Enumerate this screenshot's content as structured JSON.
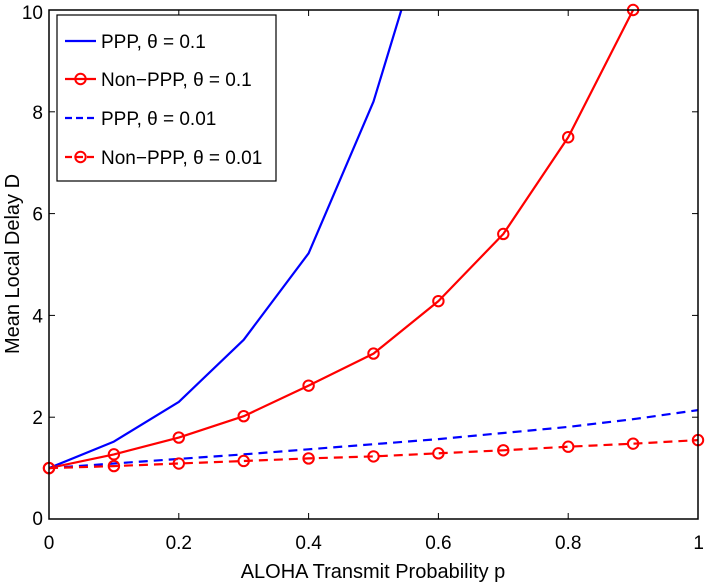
{
  "chart_data": {
    "type": "line",
    "title": "",
    "xlabel": "ALOHA Transmit Probability p",
    "ylabel": "Mean Local Delay D",
    "xlim": [
      0,
      1
    ],
    "ylim": [
      0,
      10
    ],
    "xticks": [
      0,
      0.2,
      0.4,
      0.6,
      0.8,
      1
    ],
    "yticks": [
      0,
      2,
      4,
      6,
      8,
      10
    ],
    "xtick_labels": [
      "0",
      "0.2",
      "0.4",
      "0.6",
      "0.8",
      "1"
    ],
    "ytick_labels": [
      "0",
      "2",
      "4",
      "6",
      "8",
      "10"
    ],
    "grid": false,
    "legend_position": "top-left",
    "series": [
      {
        "name": "PPP, θ = 0.1",
        "color": "#0000ff",
        "dash": "solid",
        "marker": "none",
        "x": [
          0,
          0.1,
          0.2,
          0.3,
          0.4,
          0.5,
          0.55
        ],
        "y": [
          1.0,
          1.52,
          2.3,
          3.52,
          5.22,
          8.2,
          10.3
        ]
      },
      {
        "name": "Non−PPP, θ = 0.1",
        "color": "#ff0000",
        "dash": "solid",
        "marker": "circle",
        "x": [
          0,
          0.1,
          0.2,
          0.3,
          0.4,
          0.5,
          0.6,
          0.7,
          0.8,
          0.9
        ],
        "y": [
          1.0,
          1.27,
          1.6,
          2.02,
          2.62,
          3.25,
          4.28,
          5.6,
          7.5,
          10.0
        ]
      },
      {
        "name": "PPP, θ = 0.01",
        "color": "#0000ff",
        "dash": "dashed",
        "marker": "none",
        "x": [
          0,
          0.1,
          0.2,
          0.3,
          0.4,
          0.5,
          0.6,
          0.7,
          0.8,
          0.9,
          1.0
        ],
        "y": [
          1.0,
          1.09,
          1.18,
          1.27,
          1.37,
          1.47,
          1.57,
          1.69,
          1.81,
          1.96,
          2.14
        ]
      },
      {
        "name": "Non−PPP, θ = 0.01",
        "color": "#ff0000",
        "dash": "dashed",
        "marker": "circle",
        "x": [
          0,
          0.1,
          0.2,
          0.3,
          0.4,
          0.5,
          0.6,
          0.7,
          0.8,
          0.9,
          1.0
        ],
        "y": [
          1.0,
          1.04,
          1.09,
          1.14,
          1.19,
          1.23,
          1.29,
          1.35,
          1.42,
          1.48,
          1.55
        ]
      }
    ]
  }
}
